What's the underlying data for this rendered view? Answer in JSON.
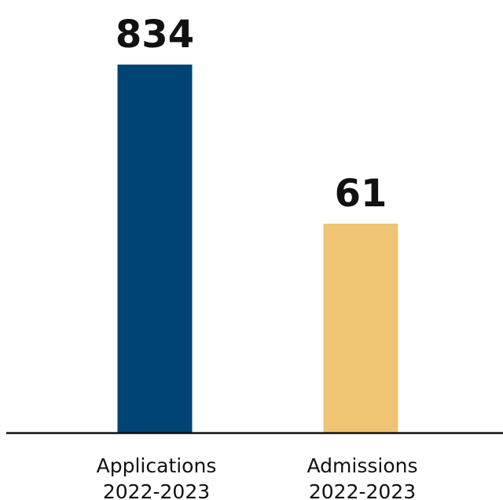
{
  "chart_data": {
    "type": "bar",
    "categories": [
      [
        "Applications",
        "2022-2023"
      ],
      [
        "Admissions",
        "2022-2023"
      ]
    ],
    "values": [
      834,
      61
    ],
    "data_labels": [
      "834",
      "61"
    ],
    "colors": [
      "#004475",
      "#EFC573"
    ],
    "grid": false,
    "legend": "none"
  }
}
